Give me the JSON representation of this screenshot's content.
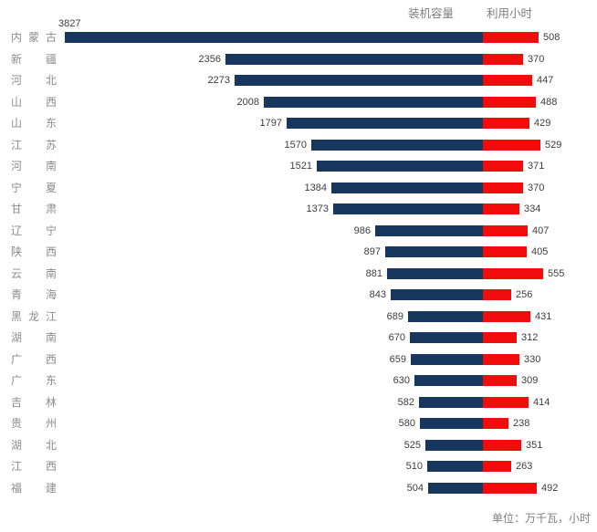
{
  "legend": {
    "capacity_label": "装机容量",
    "hours_label": "利用小时"
  },
  "unit_note": "单位：万千瓦，小时",
  "colors": {
    "capacity_bar": "#17375E",
    "hours_bar": "#F20D0D",
    "category_text": "#8C8C8C",
    "value_text": "#3D3D3D",
    "legend_text": "#7F7F7F"
  },
  "chart_data": {
    "type": "bar",
    "subtype": "horizontal-diverging",
    "title": "",
    "unit_note": "单位：万千瓦，小时",
    "legend_position": "top-right",
    "gridlines": false,
    "axes_shown": false,
    "value_labels_shown": true,
    "categories": [
      "内蒙古",
      "新疆",
      "河北",
      "山西",
      "山东",
      "江苏",
      "河南",
      "宁夏",
      "甘肃",
      "辽宁",
      "陕西",
      "云南",
      "青海",
      "黑龙江",
      "湖南",
      "广西",
      "广东",
      "吉林",
      "贵州",
      "湖北",
      "江西",
      "福建"
    ],
    "series": [
      {
        "name": "装机容量",
        "side": "left",
        "color": "#17375E",
        "values": [
          3827,
          2356,
          2273,
          2008,
          1797,
          1570,
          1521,
          1384,
          1373,
          986,
          897,
          881,
          843,
          689,
          670,
          659,
          630,
          582,
          580,
          525,
          510,
          504
        ]
      },
      {
        "name": "利用小时",
        "side": "right",
        "color": "#F20D0D",
        "values": [
          508,
          370,
          447,
          488,
          429,
          529,
          371,
          370,
          334,
          407,
          405,
          555,
          256,
          431,
          312,
          330,
          309,
          414,
          238,
          351,
          263,
          492
        ]
      }
    ]
  }
}
